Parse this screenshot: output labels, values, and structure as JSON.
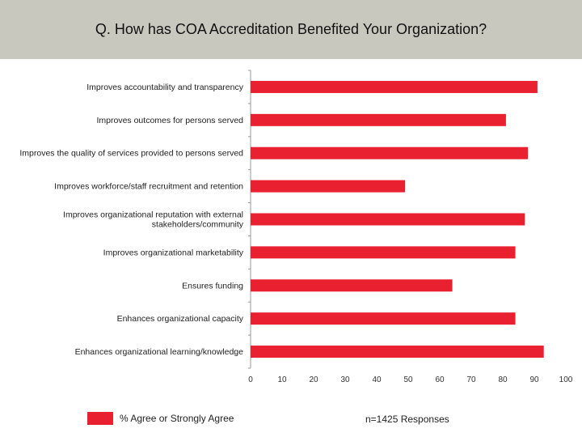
{
  "header": {
    "title": "Q. How has COA Accreditation Benefited Your Organization?"
  },
  "colors": {
    "bar": "#e8202f",
    "header_bg": "#c9c8bf",
    "axis": "#999999"
  },
  "legend": {
    "label": "% Agree or Strongly Agree"
  },
  "note": "n=1425 Responses",
  "chart_data": {
    "type": "bar",
    "orientation": "horizontal",
    "title": "Q. How has COA Accreditation Benefited Your Organization?",
    "categories": [
      [
        "Improves accountability and transparency"
      ],
      [
        "Improves outcomes for persons served"
      ],
      [
        "Improves the quality of services provided to persons served"
      ],
      [
        "Improves workforce/staff recruitment and retention"
      ],
      [
        "Improves organizational reputation with external",
        "stakeholders/community"
      ],
      [
        "Improves organizational marketability"
      ],
      [
        "Ensures funding"
      ],
      [
        "Enhances organizational capacity"
      ],
      [
        "Enhances organizational learning/knowledge"
      ]
    ],
    "series": [
      {
        "name": "% Agree or Strongly Agree",
        "values": [
          91,
          81,
          88,
          49,
          87,
          84,
          64,
          84,
          93
        ]
      }
    ],
    "xlim": [
      0,
      100
    ],
    "xticks": [
      0,
      10,
      20,
      30,
      40,
      50,
      60,
      70,
      80,
      90,
      100
    ],
    "grid": false,
    "legend_position": "bottom-left"
  }
}
